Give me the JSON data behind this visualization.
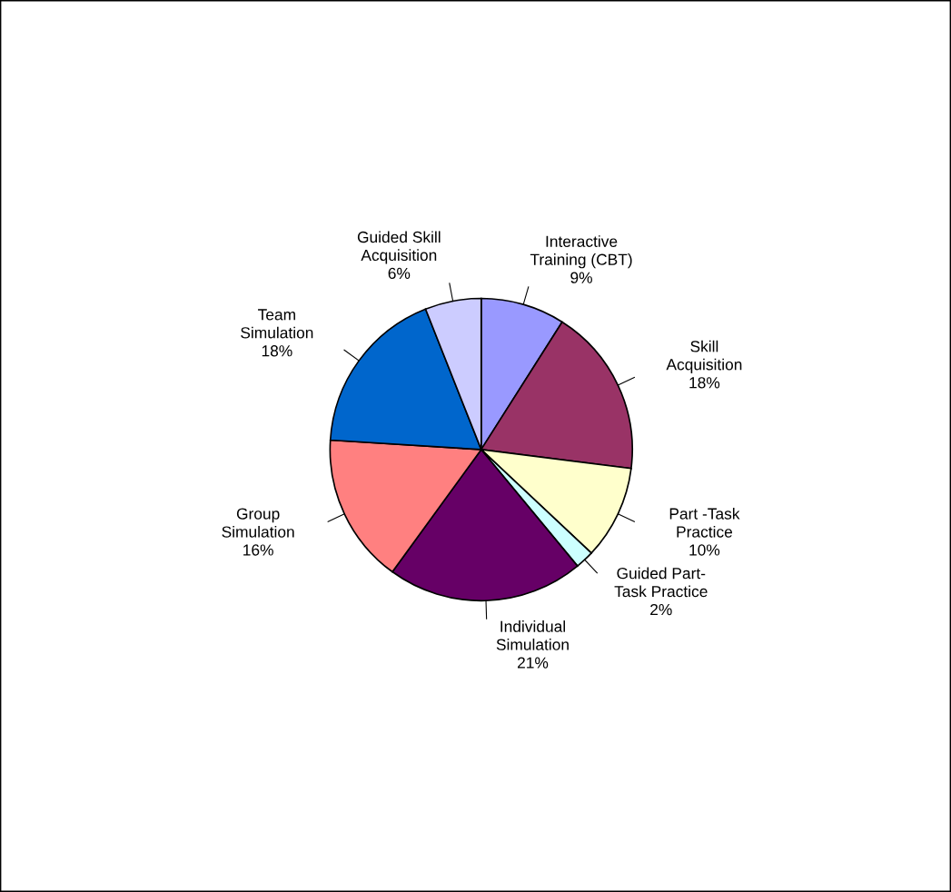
{
  "chart_data": {
    "type": "pie",
    "categories": [
      "Interactive\nTraining (CBT)",
      "Skill\nAcquisition",
      "Part -Task\nPractice",
      "Guided Part-\nTask Practice",
      "Individual\nSimulation",
      "Group\nSimulation",
      "Team\nSimulation",
      "Guided Skill\nAcquisition"
    ],
    "values": [
      9,
      18,
      10,
      2,
      21,
      16,
      18,
      6
    ],
    "value_labels": [
      "9%",
      "18%",
      "10%",
      "2%",
      "21%",
      "16%",
      "18%",
      "6%"
    ],
    "colors": [
      "#9999ff",
      "#993366",
      "#ffffcc",
      "#ccffff",
      "#660066",
      "#ff8080",
      "#0066cc",
      "#ccccff"
    ]
  }
}
